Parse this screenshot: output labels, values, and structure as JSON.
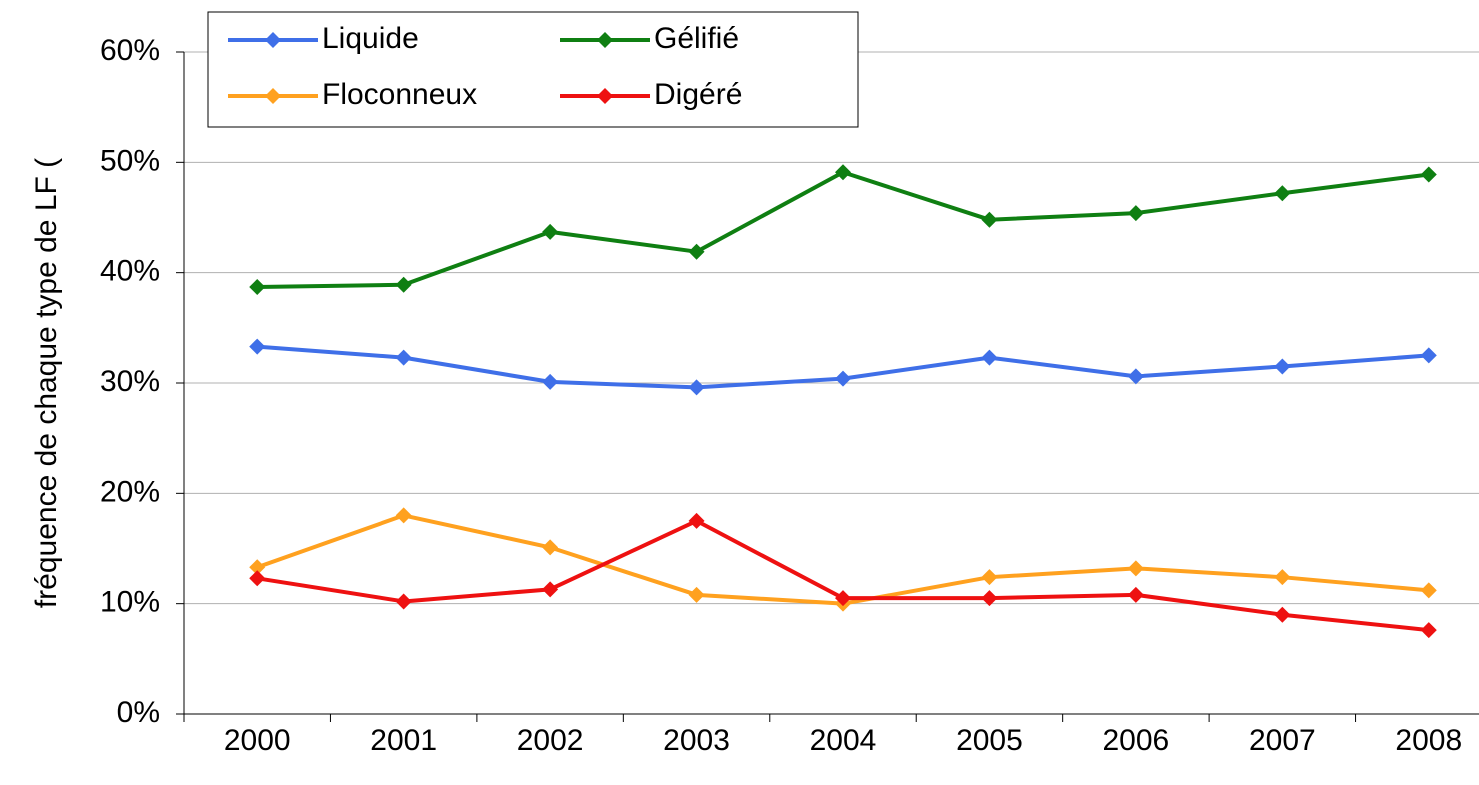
{
  "chart_data": {
    "type": "line",
    "y_label": "fréquence de chaque type de LF (",
    "categories": [
      "2000",
      "2001",
      "2002",
      "2003",
      "2004",
      "2005",
      "2006",
      "2007",
      "2008"
    ],
    "series": [
      {
        "name": "Liquide",
        "color": "#3f6fe8",
        "values": [
          33.3,
          32.3,
          30.1,
          29.6,
          30.4,
          32.3,
          30.6,
          31.5,
          32.5
        ]
      },
      {
        "name": "Gélifié",
        "color": "#0f7f12",
        "values": [
          38.7,
          38.9,
          43.7,
          41.9,
          49.1,
          44.8,
          45.4,
          47.2,
          48.9
        ]
      },
      {
        "name": "Floconneux",
        "color": "#ffa11f",
        "values": [
          13.3,
          18.0,
          15.1,
          10.8,
          10.0,
          12.4,
          13.2,
          12.4,
          11.2
        ]
      },
      {
        "name": "Digéré",
        "color": "#ee1111",
        "values": [
          12.3,
          10.2,
          11.3,
          17.5,
          10.5,
          10.5,
          10.8,
          9.0,
          7.6
        ]
      }
    ],
    "ylim": [
      0,
      60
    ],
    "yticks": [
      {
        "value": 0,
        "label": "0%"
      },
      {
        "value": 10,
        "label": "10%"
      },
      {
        "value": 20,
        "label": "20%"
      },
      {
        "value": 30,
        "label": "30%"
      },
      {
        "value": 40,
        "label": "40%"
      },
      {
        "value": 50,
        "label": "50%"
      },
      {
        "value": 60,
        "label": "60%"
      }
    ],
    "grid": true,
    "legend": "top-left"
  }
}
